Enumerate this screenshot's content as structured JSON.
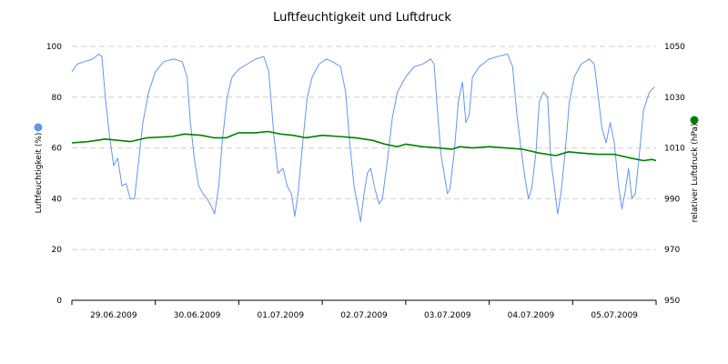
{
  "chart_data": {
    "type": "line",
    "title": "Luftfeuchtigkeit und Luftdruck",
    "grid": true,
    "x_categories": [
      "29.06.2009",
      "30.06.2009",
      "01.07.2009",
      "02.07.2009",
      "03.07.2009",
      "04.07.2009",
      "05.07.2009"
    ],
    "xlim": [
      0,
      7
    ],
    "y_left": {
      "label": "Luftfeuchtigkeit (%)",
      "range": [
        0,
        100
      ],
      "ticks": [
        "0",
        "20",
        "40",
        "60",
        "80",
        "100"
      ],
      "legend_marker_color": "#6495ed"
    },
    "y_right": {
      "label": "relativer Luftdruck (hPa)",
      "range": [
        950,
        1050
      ],
      "ticks": [
        "950",
        "970",
        "990",
        "1010",
        "1030",
        "1050"
      ],
      "legend_marker_color": "#008000"
    },
    "series": [
      {
        "axis": "left",
        "color": "#6495ed",
        "points": [
          [
            0.0,
            90
          ],
          [
            0.06,
            93
          ],
          [
            0.15,
            94
          ],
          [
            0.25,
            95
          ],
          [
            0.32,
            97
          ],
          [
            0.36,
            96
          ],
          [
            0.4,
            80
          ],
          [
            0.45,
            65
          ],
          [
            0.5,
            53
          ],
          [
            0.55,
            56
          ],
          [
            0.6,
            45
          ],
          [
            0.65,
            46
          ],
          [
            0.7,
            40
          ],
          [
            0.75,
            40
          ],
          [
            0.8,
            55
          ],
          [
            0.85,
            70
          ],
          [
            0.92,
            82
          ],
          [
            1.0,
            90
          ],
          [
            1.1,
            94
          ],
          [
            1.22,
            95
          ],
          [
            1.32,
            94
          ],
          [
            1.38,
            88
          ],
          [
            1.42,
            70
          ],
          [
            1.47,
            55
          ],
          [
            1.52,
            45
          ],
          [
            1.57,
            42
          ],
          [
            1.62,
            40
          ],
          [
            1.67,
            37
          ],
          [
            1.71,
            34
          ],
          [
            1.76,
            45
          ],
          [
            1.8,
            62
          ],
          [
            1.86,
            80
          ],
          [
            1.92,
            88
          ],
          [
            2.0,
            91
          ],
          [
            2.1,
            93
          ],
          [
            2.2,
            95
          ],
          [
            2.3,
            96
          ],
          [
            2.36,
            90
          ],
          [
            2.42,
            65
          ],
          [
            2.47,
            50
          ],
          [
            2.53,
            52
          ],
          [
            2.58,
            45
          ],
          [
            2.63,
            42
          ],
          [
            2.67,
            33
          ],
          [
            2.71,
            42
          ],
          [
            2.76,
            60
          ],
          [
            2.82,
            80
          ],
          [
            2.88,
            88
          ],
          [
            2.96,
            93
          ],
          [
            3.05,
            95
          ],
          [
            3.12,
            94
          ],
          [
            3.22,
            92
          ],
          [
            3.28,
            82
          ],
          [
            3.33,
            62
          ],
          [
            3.38,
            45
          ],
          [
            3.42,
            38
          ],
          [
            3.46,
            31
          ],
          [
            3.5,
            42
          ],
          [
            3.54,
            50
          ],
          [
            3.58,
            52
          ],
          [
            3.63,
            44
          ],
          [
            3.68,
            38
          ],
          [
            3.72,
            40
          ],
          [
            3.78,
            55
          ],
          [
            3.84,
            72
          ],
          [
            3.9,
            82
          ],
          [
            4.0,
            88
          ],
          [
            4.1,
            92
          ],
          [
            4.2,
            93
          ],
          [
            4.3,
            95
          ],
          [
            4.34,
            93
          ],
          [
            4.38,
            75
          ],
          [
            4.42,
            58
          ],
          [
            4.46,
            50
          ],
          [
            4.5,
            42
          ],
          [
            4.53,
            44
          ],
          [
            4.58,
            58
          ],
          [
            4.63,
            78
          ],
          [
            4.68,
            86
          ],
          [
            4.72,
            70
          ],
          [
            4.76,
            73
          ],
          [
            4.8,
            88
          ],
          [
            4.88,
            92
          ],
          [
            5.0,
            95
          ],
          [
            5.1,
            96
          ],
          [
            5.22,
            97
          ],
          [
            5.28,
            92
          ],
          [
            5.33,
            74
          ],
          [
            5.38,
            60
          ],
          [
            5.43,
            48
          ],
          [
            5.47,
            40
          ],
          [
            5.51,
            44
          ],
          [
            5.56,
            58
          ],
          [
            5.6,
            78
          ],
          [
            5.65,
            82
          ],
          [
            5.7,
            80
          ],
          [
            5.74,
            55
          ],
          [
            5.78,
            45
          ],
          [
            5.82,
            34
          ],
          [
            5.86,
            42
          ],
          [
            5.91,
            58
          ],
          [
            5.96,
            78
          ],
          [
            6.02,
            88
          ],
          [
            6.1,
            93
          ],
          [
            6.2,
            95
          ],
          [
            6.26,
            93
          ],
          [
            6.3,
            82
          ],
          [
            6.35,
            68
          ],
          [
            6.4,
            62
          ],
          [
            6.45,
            70
          ],
          [
            6.5,
            62
          ],
          [
            6.55,
            45
          ],
          [
            6.59,
            36
          ],
          [
            6.63,
            43
          ],
          [
            6.67,
            52
          ],
          [
            6.71,
            40
          ],
          [
            6.75,
            42
          ],
          [
            6.8,
            58
          ],
          [
            6.85,
            75
          ],
          [
            6.92,
            82
          ],
          [
            6.98,
            84
          ]
        ]
      },
      {
        "axis": "right",
        "color": "#008000",
        "points": [
          [
            0.0,
            1012
          ],
          [
            0.2,
            1012.5
          ],
          [
            0.4,
            1013.5
          ],
          [
            0.55,
            1013
          ],
          [
            0.7,
            1012.5
          ],
          [
            0.9,
            1014
          ],
          [
            1.2,
            1014.5
          ],
          [
            1.35,
            1015.5
          ],
          [
            1.55,
            1015
          ],
          [
            1.7,
            1014
          ],
          [
            1.85,
            1014
          ],
          [
            2.0,
            1016
          ],
          [
            2.2,
            1016
          ],
          [
            2.35,
            1016.5
          ],
          [
            2.5,
            1015.5
          ],
          [
            2.65,
            1015
          ],
          [
            2.8,
            1014
          ],
          [
            3.0,
            1015
          ],
          [
            3.2,
            1014.5
          ],
          [
            3.4,
            1014
          ],
          [
            3.6,
            1013
          ],
          [
            3.75,
            1011.5
          ],
          [
            3.9,
            1010.5
          ],
          [
            4.0,
            1011.5
          ],
          [
            4.2,
            1010.5
          ],
          [
            4.4,
            1010
          ],
          [
            4.55,
            1009.5
          ],
          [
            4.65,
            1010.5
          ],
          [
            4.8,
            1010
          ],
          [
            5.0,
            1010.5
          ],
          [
            5.2,
            1010
          ],
          [
            5.4,
            1009.5
          ],
          [
            5.6,
            1008
          ],
          [
            5.8,
            1007
          ],
          [
            5.95,
            1008.5
          ],
          [
            6.1,
            1008
          ],
          [
            6.3,
            1007.5
          ],
          [
            6.5,
            1007.5
          ],
          [
            6.7,
            1006
          ],
          [
            6.85,
            1005
          ],
          [
            6.95,
            1005.5
          ],
          [
            7.0,
            1005
          ]
        ]
      }
    ]
  }
}
